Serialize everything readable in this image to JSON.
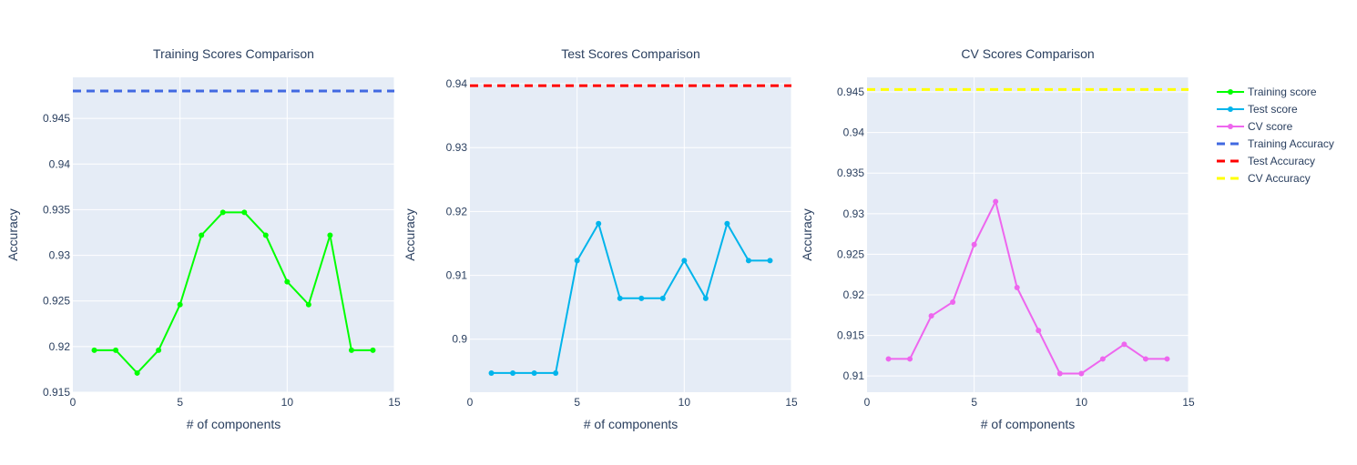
{
  "chart_data": [
    {
      "type": "line",
      "title": "Training Scores Comparison",
      "xlabel": "# of components",
      "ylabel": "Accuracy",
      "xlim": [
        0,
        15
      ],
      "ylim": [
        0.915,
        0.9495
      ],
      "xticks": [
        0,
        5,
        10,
        15
      ],
      "xtick_labels": [
        "0",
        "5",
        "10",
        "15"
      ],
      "yticks": [
        0.915,
        0.92,
        0.925,
        0.93,
        0.935,
        0.94,
        0.945
      ],
      "ytick_labels": [
        "0.915",
        "0.92",
        "0.925",
        "0.93",
        "0.935",
        "0.94",
        "0.945"
      ],
      "series": [
        {
          "name": "Training score",
          "color": "#00ff00",
          "x": [
            1,
            2,
            3,
            4,
            5,
            6,
            7,
            8,
            9,
            10,
            11,
            12,
            13,
            14
          ],
          "y": [
            0.9196,
            0.9196,
            0.9171,
            0.9196,
            0.9246,
            0.9322,
            0.9347,
            0.9347,
            0.9322,
            0.9271,
            0.9246,
            0.9322,
            0.9196,
            0.9196
          ]
        }
      ],
      "hline": {
        "name": "Training Accuracy",
        "y": 0.948,
        "color": "#4169e1",
        "dash": "dash"
      }
    },
    {
      "type": "line",
      "title": "Test Scores Comparison",
      "xlabel": "# of components",
      "ylabel": "Accuracy",
      "xlim": [
        0,
        15
      ],
      "ylim": [
        0.8917,
        0.941
      ],
      "xticks": [
        0,
        5,
        10,
        15
      ],
      "xtick_labels": [
        "0",
        "5",
        "10",
        "15"
      ],
      "yticks": [
        0.9,
        0.91,
        0.92,
        0.93,
        0.94
      ],
      "ytick_labels": [
        "0.9",
        "0.91",
        "0.92",
        "0.93",
        "0.94"
      ],
      "series": [
        {
          "name": "Test score",
          "color": "#00b4eb",
          "x": [
            1,
            2,
            3,
            4,
            5,
            6,
            7,
            8,
            9,
            10,
            11,
            12,
            13,
            14
          ],
          "y": [
            0.8947,
            0.8947,
            0.8947,
            0.8947,
            0.9123,
            0.9181,
            0.9064,
            0.9064,
            0.9064,
            0.9123,
            0.9064,
            0.9181,
            0.9123,
            0.9123
          ]
        }
      ],
      "hline": {
        "name": "Test Accuracy",
        "y": 0.9397,
        "color": "#ff0000",
        "dash": "dash"
      }
    },
    {
      "type": "line",
      "title": "CV Scores Comparison",
      "xlabel": "# of components",
      "ylabel": "Accuracy",
      "xlim": [
        0,
        15
      ],
      "ylim": [
        0.908,
        0.9468
      ],
      "xticks": [
        0,
        5,
        10,
        15
      ],
      "xtick_labels": [
        "0",
        "5",
        "10",
        "15"
      ],
      "yticks": [
        0.91,
        0.915,
        0.92,
        0.925,
        0.93,
        0.935,
        0.94,
        0.945
      ],
      "ytick_labels": [
        "0.91",
        "0.915",
        "0.92",
        "0.925",
        "0.93",
        "0.935",
        "0.94",
        "0.945"
      ],
      "series": [
        {
          "name": "CV score",
          "color": "#ee66ee",
          "x": [
            1,
            2,
            3,
            4,
            5,
            6,
            7,
            8,
            9,
            10,
            11,
            12,
            13,
            14
          ],
          "y": [
            0.9121,
            0.9121,
            0.9174,
            0.9191,
            0.9262,
            0.9315,
            0.9209,
            0.9156,
            0.9103,
            0.9103,
            0.9121,
            0.9139,
            0.9121,
            0.9121
          ]
        }
      ],
      "hline": {
        "name": "CV Accuracy",
        "y": 0.9453,
        "color": "#ffff00",
        "dash": "dash"
      }
    }
  ],
  "legend": {
    "placement": "right",
    "items": [
      {
        "label": "Training score",
        "color": "#00ff00",
        "style": "line-marker"
      },
      {
        "label": "Test score",
        "color": "#00b4eb",
        "style": "line-marker"
      },
      {
        "label": "CV score",
        "color": "#ee66ee",
        "style": "line-marker"
      },
      {
        "label": "Training Accuracy",
        "color": "#4169e1",
        "style": "dash"
      },
      {
        "label": "Test Accuracy",
        "color": "#ff0000",
        "style": "dash"
      },
      {
        "label": "CV Accuracy",
        "color": "#ffff00",
        "style": "dash"
      }
    ]
  },
  "colors": {
    "plot_background": "#e5ecf6",
    "grid": "#ffffff",
    "text": "#2a3f5f"
  }
}
